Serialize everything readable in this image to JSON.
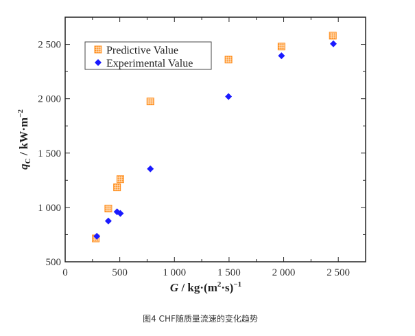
{
  "chart_data": {
    "type": "scatter",
    "xlabel": {
      "var": "G",
      "unit": " / kg·(m",
      "sup1": "2",
      "mid": "·s)",
      "sup2": "−1"
    },
    "ylabel": {
      "var": "q",
      "sub": "C",
      "unit": " / kW·m",
      "sup": "−2"
    },
    "xlim": [
      0,
      2750
    ],
    "ylim": [
      500,
      2750
    ],
    "xticks": [
      0,
      500,
      1000,
      1500,
      2000,
      2500
    ],
    "xtick_labels": [
      "0",
      "500",
      "1 000",
      "1 500",
      "2 000",
      "2 500"
    ],
    "yticks": [
      500,
      1000,
      1500,
      2000,
      2500
    ],
    "ytick_labels": [
      "500",
      "1 000",
      "1 500",
      "2 000",
      "2 500"
    ],
    "grid": false,
    "legend": "top-left",
    "series": [
      {
        "name": "Predictive Value",
        "color": "#ff8c1a",
        "marker": "crosshatch-square",
        "x": [
          280,
          395,
          475,
          505,
          780,
          1495,
          1980,
          2450
        ],
        "y": [
          715,
          990,
          1185,
          1260,
          1975,
          2360,
          2480,
          2580
        ]
      },
      {
        "name": "Experimental Value",
        "color": "#1a1aff",
        "marker": "diamond",
        "x": [
          290,
          395,
          475,
          505,
          780,
          1495,
          1980,
          2455
        ],
        "y": [
          735,
          875,
          960,
          945,
          1355,
          2020,
          2395,
          2505
        ]
      }
    ]
  },
  "caption": "图4 CHF随质量流速的变化趋势"
}
